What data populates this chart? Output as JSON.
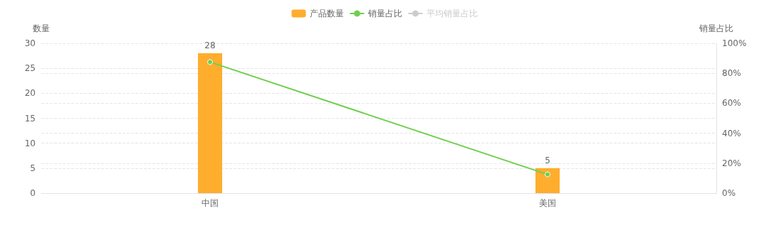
{
  "chart_data": {
    "type": "bar",
    "categories": [
      "中国",
      "美国"
    ],
    "ylabel": "数量",
    "y2label": "销量占比",
    "ylim": [
      0,
      30
    ],
    "yticks": [
      0,
      5,
      10,
      15,
      20,
      25,
      30
    ],
    "y2lim": [
      0,
      100
    ],
    "y2ticks": [
      {
        "value": 0,
        "label": "0%"
      },
      {
        "value": 20,
        "label": "20%"
      },
      {
        "value": 40,
        "label": "40%"
      },
      {
        "value": 60,
        "label": "60%"
      },
      {
        "value": 80,
        "label": "80%"
      },
      {
        "value": 100,
        "label": "100%"
      }
    ],
    "grid": "y",
    "legend": "top",
    "marker": "circle",
    "series": [
      {
        "name": "产品数量",
        "color": "#ffad2d",
        "values": [
          28,
          5
        ],
        "value_labels": [
          "28",
          "5"
        ]
      },
      {
        "name": "销量占比",
        "type": "line",
        "axis": "y2",
        "color": "#6fcf4f",
        "values": [
          87.5,
          12.5
        ]
      },
      {
        "name": "平均销量占比",
        "type": "line",
        "axis": "y2",
        "color": "#cccccc",
        "values": [
          null,
          null
        ]
      }
    ]
  }
}
